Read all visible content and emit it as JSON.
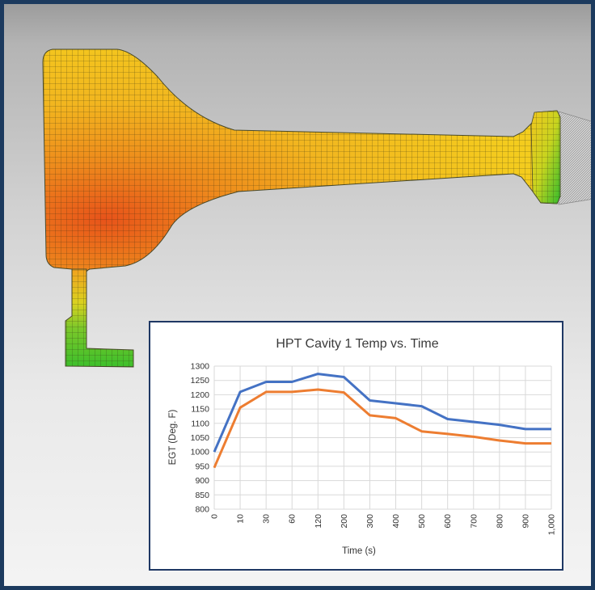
{
  "colors": {
    "frame_border": "#1c3a5e",
    "inset_border": "#1f3864",
    "series_1": "#4472c4",
    "series_2": "#ed7d31",
    "mesh_hot": "#e8531a",
    "mesh_warm": "#f2c21d",
    "mesh_cool": "#3bbf2a"
  },
  "model": {
    "description_icon": "fea-mesh-turbine-disk-icon"
  },
  "chart_data": {
    "type": "line",
    "title": "HPT Cavity 1 Temp vs. Time",
    "xlabel": "Time (s)",
    "ylabel": "EGT (Deg. F)",
    "categories": [
      "0",
      "10",
      "30",
      "60",
      "120",
      "200",
      "300",
      "400",
      "500",
      "600",
      "700",
      "800",
      "900",
      "1,000"
    ],
    "ylim": [
      800,
      1300
    ],
    "yticks": [
      800,
      850,
      900,
      950,
      1000,
      1050,
      1100,
      1150,
      1200,
      1250,
      1300
    ],
    "grid": true,
    "legend": "none",
    "series": [
      {
        "color": "#4472c4",
        "values": [
          1000,
          1210,
          1245,
          1245,
          1273,
          1262,
          1180,
          1170,
          1160,
          1115,
          1105,
          1095,
          1080,
          1080
        ]
      },
      {
        "color": "#ed7d31",
        "values": [
          945,
          1155,
          1210,
          1210,
          1218,
          1208,
          1128,
          1118,
          1072,
          1063,
          1053,
          1040,
          1030,
          1030
        ]
      }
    ]
  }
}
